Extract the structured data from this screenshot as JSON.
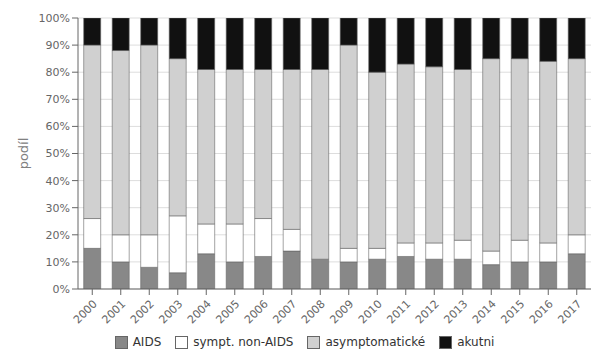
{
  "chart_data": {
    "type": "bar",
    "stacked": true,
    "ylabel": "podíl",
    "categories": [
      "2000",
      "2001",
      "2002",
      "2003",
      "2004",
      "2005",
      "2006",
      "2007",
      "2008",
      "2009",
      "2010",
      "2011",
      "2012",
      "2013",
      "2014",
      "2015",
      "2016",
      "2017"
    ],
    "series": [
      {
        "name": "AIDS",
        "color": "#888888",
        "values": [
          15,
          10,
          8,
          6,
          13,
          10,
          12,
          14,
          11,
          10,
          11,
          12,
          11,
          11,
          9,
          10,
          10,
          13
        ]
      },
      {
        "name": "sympt. non-AIDS",
        "color": "#ffffff",
        "values": [
          11,
          10,
          12,
          21,
          11,
          14,
          14,
          8,
          0,
          5,
          4,
          5,
          6,
          7,
          5,
          8,
          7,
          7
        ]
      },
      {
        "name": "asymptomatické",
        "color": "#d0d0d0",
        "values": [
          64,
          68,
          70,
          58,
          57,
          57,
          55,
          59,
          70,
          75,
          65,
          66,
          65,
          63,
          71,
          67,
          67,
          65
        ]
      },
      {
        "name": "akutni",
        "color": "#111111",
        "values": [
          10,
          12,
          10,
          15,
          19,
          19,
          19,
          19,
          19,
          10,
          20,
          17,
          18,
          19,
          15,
          15,
          16,
          15
        ]
      }
    ],
    "ylim": [
      0,
      100
    ],
    "yticks": [
      {
        "value": 0,
        "label": "0%"
      },
      {
        "value": 10,
        "label": "10%"
      },
      {
        "value": 20,
        "label": "20%"
      },
      {
        "value": 30,
        "label": "30%"
      },
      {
        "value": 40,
        "label": "40%"
      },
      {
        "value": 50,
        "label": "50%"
      },
      {
        "value": 60,
        "label": "60%"
      },
      {
        "value": 70,
        "label": "70%"
      },
      {
        "value": 80,
        "label": "80%"
      },
      {
        "value": 90,
        "label": "90%"
      },
      {
        "value": 100,
        "label": "100%"
      }
    ],
    "grid": true,
    "legend": "bottom"
  }
}
